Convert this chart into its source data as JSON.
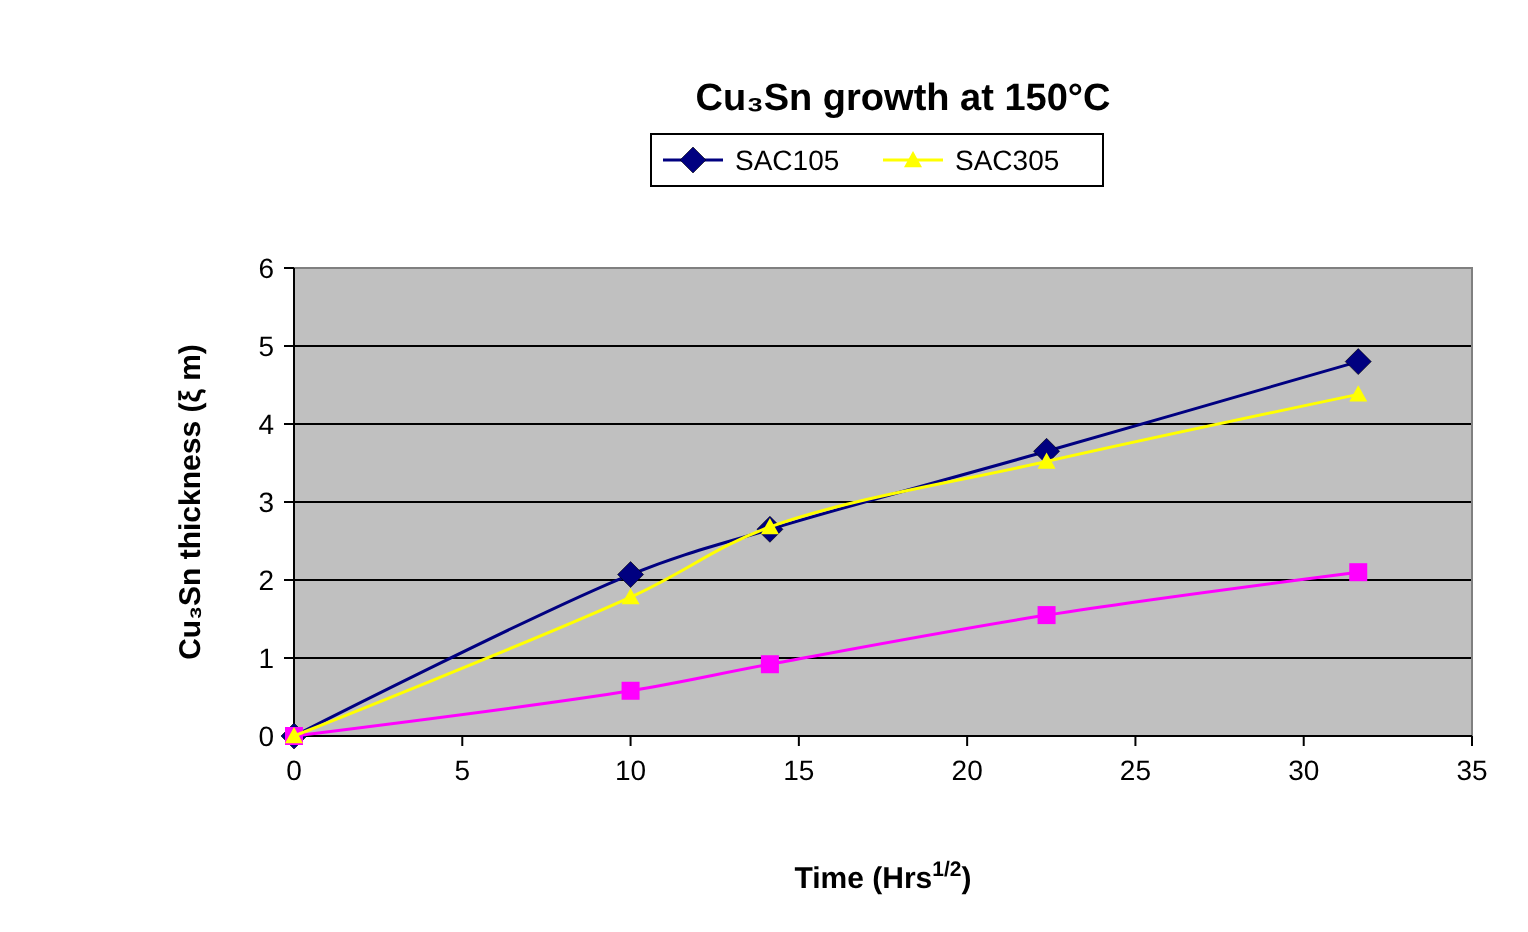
{
  "chart_data": {
    "type": "line",
    "title": "Cu₃Sn growth at 150°C",
    "xlabel": "Time (Hrs$^{1/2}$)",
    "ylabel": "Cu₃Sn thickness (ξ m)",
    "xlim": [
      0,
      35
    ],
    "xticks": [
      0,
      5,
      10,
      15,
      20,
      25,
      30,
      35
    ],
    "ylim": [
      0,
      6
    ],
    "yticks": [
      0,
      1,
      2,
      3,
      4,
      5,
      6
    ],
    "grid": "y",
    "legend": "top",
    "series": [
      {
        "name": "SAC105",
        "color": "#000080",
        "marker": "diamond",
        "x": [
          0,
          10,
          14.14,
          22.36,
          31.62
        ],
        "values": [
          0,
          2.07,
          2.65,
          3.65,
          4.8
        ]
      },
      {
        "color": "#ff00ff",
        "marker": "square",
        "x": [
          0,
          10,
          14.14,
          22.36,
          31.62
        ],
        "values": [
          0,
          0.58,
          0.92,
          1.55,
          2.1
        ]
      },
      {
        "name": "SAC305",
        "color": "#ffff00",
        "marker": "triangle",
        "x": [
          0,
          10,
          14.14,
          22.36,
          31.62
        ],
        "values": [
          0,
          1.78,
          2.68,
          3.52,
          4.38
        ]
      }
    ]
  }
}
